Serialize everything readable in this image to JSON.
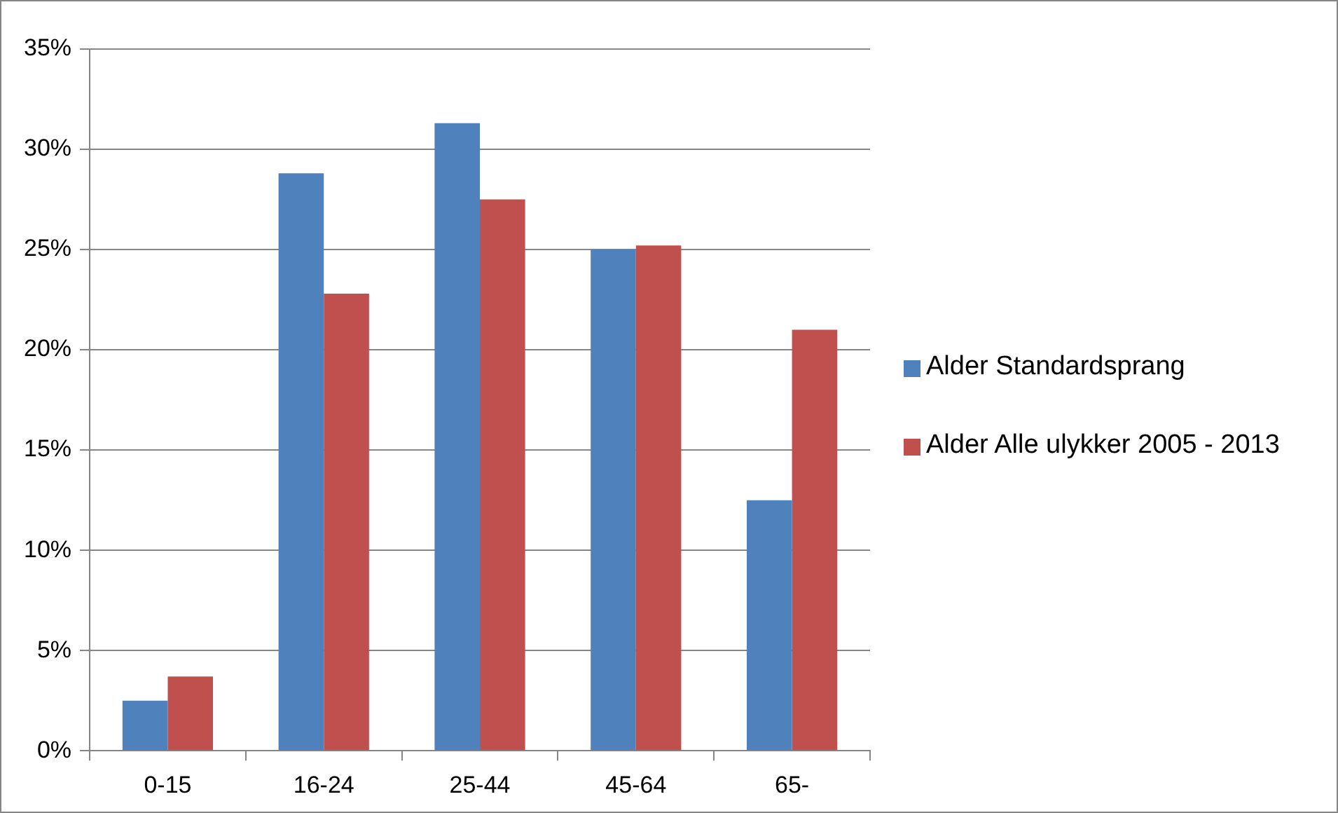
{
  "chart_data": {
    "type": "bar",
    "categories": [
      "0-15",
      "16-24",
      "25-44",
      "45-64",
      "65-"
    ],
    "series": [
      {
        "name": "Alder Standardsprang",
        "color": "#4f81bd",
        "values": [
          2.5,
          28.8,
          31.3,
          25.0,
          12.5
        ]
      },
      {
        "name": "Alder Alle ulykker 2005 - 2013",
        "color": "#c0504d",
        "values": [
          3.7,
          22.8,
          27.5,
          25.2,
          21.0
        ]
      }
    ],
    "ylim": [
      0,
      35
    ],
    "yticks": [
      {
        "value": 0,
        "label": "0%"
      },
      {
        "value": 5,
        "label": "5%"
      },
      {
        "value": 10,
        "label": "10%"
      },
      {
        "value": 15,
        "label": "15%"
      },
      {
        "value": 20,
        "label": "20%"
      },
      {
        "value": 25,
        "label": "25%"
      },
      {
        "value": 30,
        "label": "30%"
      },
      {
        "value": 35,
        "label": "35%"
      }
    ],
    "grid": "y",
    "legend": "right"
  }
}
